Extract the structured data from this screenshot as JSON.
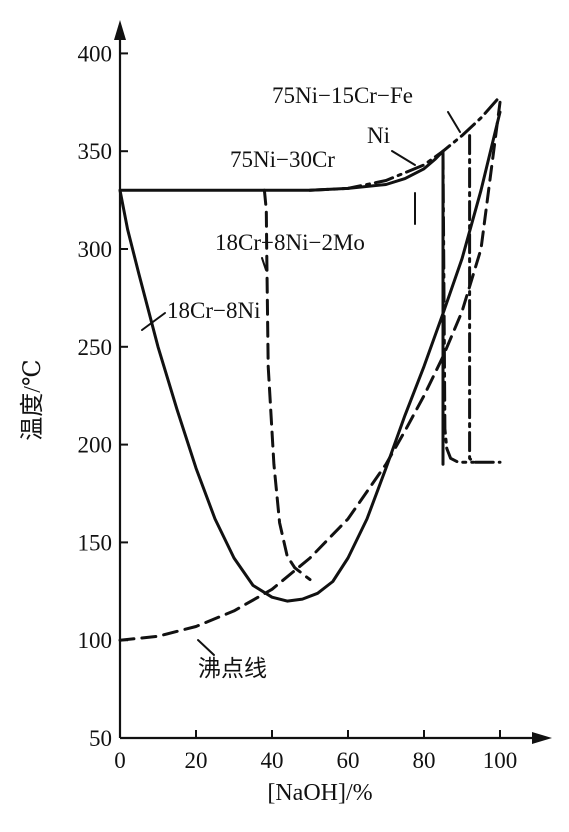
{
  "chart_data": {
    "type": "line",
    "xlabel": "[NaOH]/%",
    "ylabel": "温度/℃",
    "xlim": [
      0,
      110
    ],
    "ylim": [
      50,
      400
    ],
    "xticks": [
      "0",
      "20",
      "40",
      "60",
      "80",
      "100"
    ],
    "yticks": [
      "50",
      "100",
      "150",
      "200",
      "250",
      "300",
      "350",
      "400"
    ],
    "series": [
      {
        "name": "18Cr−8Ni",
        "style": "solid",
        "x": [
          0,
          2,
          5,
          10,
          15,
          20,
          25,
          30,
          35,
          40,
          44,
          48,
          52,
          56,
          60,
          65,
          70,
          75,
          80,
          85,
          90,
          95,
          100
        ],
        "y": [
          330,
          310,
          287,
          250,
          218,
          188,
          162,
          142,
          128,
          122,
          120,
          121,
          124,
          130,
          142,
          162,
          188,
          215,
          240,
          267,
          295,
          330,
          370
        ]
      },
      {
        "name": "18Cr−8Ni−2Mo",
        "style": "dash",
        "x": [
          38,
          38.5,
          38.6,
          39,
          40.5,
          42,
          44,
          46,
          48,
          50
        ],
        "y": [
          330,
          320,
          300,
          240,
          190,
          160,
          143,
          137,
          134,
          131
        ]
      },
      {
        "name": "75Ni−30Cr",
        "style": "solid",
        "x": [
          0,
          20,
          40,
          50,
          60,
          70,
          75,
          80,
          83,
          85,
          85
        ],
        "y": [
          330,
          330,
          330,
          330,
          331,
          333,
          336,
          341,
          346,
          350,
          190
        ]
      },
      {
        "name": "Ni",
        "style": "dashdot",
        "x": [
          50,
          60,
          70,
          80,
          85,
          90,
          95,
          100,
          85.5,
          86,
          87,
          89,
          91,
          93
        ],
        "y": [
          330,
          331,
          335,
          343,
          350,
          358,
          367,
          378,
          208,
          198,
          193,
          191,
          191,
          191
        ]
      },
      {
        "name": "75Ni−15Cr−Fe",
        "style": "dashdot",
        "x": [
          92,
          92,
          93,
          95,
          97,
          100
        ],
        "y": [
          358,
          193,
          191,
          191,
          191,
          191
        ]
      },
      {
        "name": "沸点线",
        "style": "dash",
        "x": [
          0,
          10,
          20,
          30,
          40,
          50,
          60,
          70,
          75,
          80,
          85,
          90,
          95,
          100
        ],
        "y": [
          100,
          102,
          107,
          115,
          126,
          142,
          162,
          190,
          207,
          225,
          245,
          268,
          300,
          375
        ]
      }
    ]
  },
  "annotations": {
    "curve_18cr8ni": "18Cr−8Ni",
    "curve_18cr8ni2mo": "18Cr−8Ni−2Mo",
    "curve_75ni30cr": "75Ni−30Cr",
    "curve_ni": "Ni",
    "curve_75ni15crfe": "75Ni−15Cr−Fe",
    "curve_boiling": "沸点线"
  }
}
